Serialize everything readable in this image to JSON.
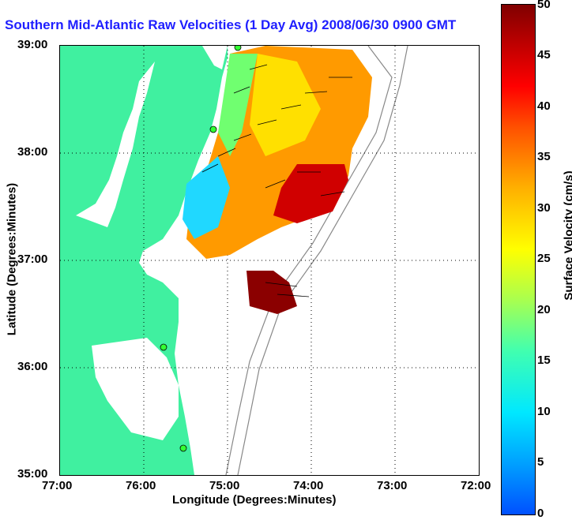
{
  "title": "Southern Mid-Atlantic Raw Velocities (1 Day Avg) 2008/06/30 0900 GMT",
  "axes": {
    "x_label": "Longitude (Degrees:Minutes)",
    "y_label": "Latitude (Degrees:Minutes)",
    "x_ticks": [
      "77:00",
      "76:00",
      "75:00",
      "74:00",
      "73:00",
      "72:00"
    ],
    "y_ticks": [
      "39:00",
      "38:00",
      "37:00",
      "36:00",
      "35:00"
    ]
  },
  "colorbar": {
    "label": "Surface Velocity (cm/s)",
    "ticks": [
      "50",
      "45",
      "40",
      "35",
      "30",
      "25",
      "20",
      "15",
      "10",
      "5",
      "0"
    ]
  },
  "colors": {
    "land": "#40f0a0",
    "title": "#1f1fff",
    "station": "#33ff33",
    "bathymetry": "#888888"
  },
  "stations": [
    {
      "name": "station-1"
    },
    {
      "name": "station-2"
    },
    {
      "name": "station-3"
    },
    {
      "name": "station-4"
    }
  ]
}
